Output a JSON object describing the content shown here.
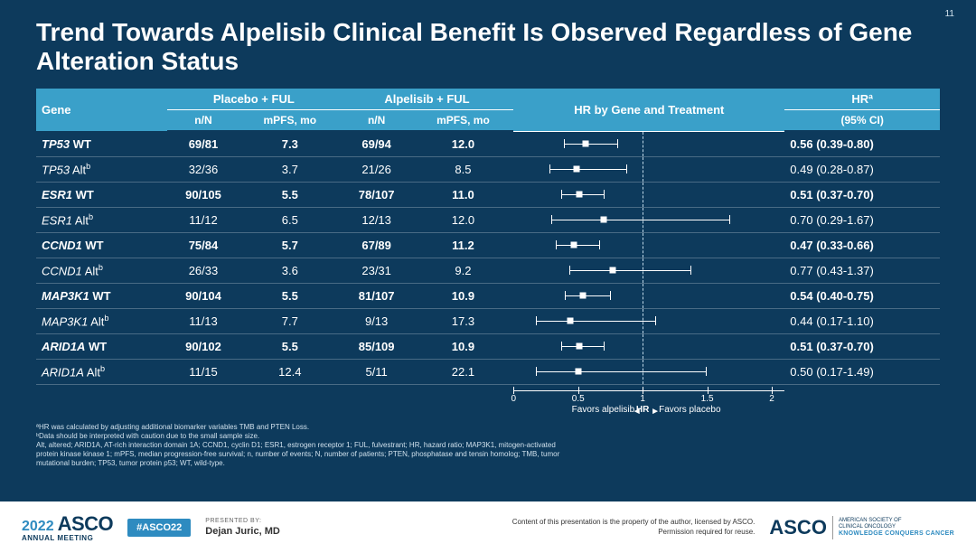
{
  "pageNumber": "11",
  "title": "Trend Towards Alpelisib Clinical Benefit Is Observed Regardless of Gene Alteration Status",
  "colors": {
    "slideBg": "#0d3a5c",
    "headerBg": "#3aa0c9",
    "text": "#ffffff",
    "footnote": "#cfe0ec",
    "accent": "#2e8bc0"
  },
  "headers": {
    "gene": "Gene",
    "placebo": "Placebo + FUL",
    "alpelisib": "Alpelisib + FUL",
    "nN": "n/N",
    "mpfs": "mPFS, mo",
    "forest": "HR by Gene and Treatment",
    "hr": "HRª",
    "ci": "(95% CI)"
  },
  "forest": {
    "xmin": 0,
    "xmax": 2.1,
    "refline": 1.0,
    "ticks": [
      0,
      0.5,
      1,
      1.5,
      2
    ],
    "leftLabel": "Favors alpelisib",
    "centerLabel": "HR",
    "rightLabel": "Favors placebo"
  },
  "rows": [
    {
      "gene": "TP53",
      "suffix": " WT",
      "sup": "",
      "bold": true,
      "p_nN": "69/81",
      "p_mpfs": "7.3",
      "a_nN": "69/94",
      "a_mpfs": "12.0",
      "hr": 0.56,
      "lo": 0.39,
      "hi": 0.8,
      "hrText": "0.56 (0.39-0.80)"
    },
    {
      "gene": "TP53",
      "suffix": " Alt",
      "sup": "b",
      "bold": false,
      "p_nN": "32/36",
      "p_mpfs": "3.7",
      "a_nN": "21/26",
      "a_mpfs": "8.5",
      "hr": 0.49,
      "lo": 0.28,
      "hi": 0.87,
      "hrText": "0.49 (0.28-0.87)"
    },
    {
      "gene": "ESR1",
      "suffix": " WT",
      "sup": "",
      "bold": true,
      "p_nN": "90/105",
      "p_mpfs": "5.5",
      "a_nN": "78/107",
      "a_mpfs": "11.0",
      "hr": 0.51,
      "lo": 0.37,
      "hi": 0.7,
      "hrText": "0.51 (0.37-0.70)"
    },
    {
      "gene": "ESR1",
      "suffix": " Alt",
      "sup": "b",
      "bold": false,
      "p_nN": "11/12",
      "p_mpfs": "6.5",
      "a_nN": "12/13",
      "a_mpfs": "12.0",
      "hr": 0.7,
      "lo": 0.29,
      "hi": 1.67,
      "hrText": "0.70 (0.29-1.67)"
    },
    {
      "gene": "CCND1",
      "suffix": " WT",
      "sup": "",
      "bold": true,
      "p_nN": "75/84",
      "p_mpfs": "5.7",
      "a_nN": "67/89",
      "a_mpfs": "11.2",
      "hr": 0.47,
      "lo": 0.33,
      "hi": 0.66,
      "hrText": "0.47 (0.33-0.66)"
    },
    {
      "gene": "CCND1",
      "suffix": " Alt",
      "sup": "b",
      "bold": false,
      "p_nN": "26/33",
      "p_mpfs": "3.6",
      "a_nN": "23/31",
      "a_mpfs": "9.2",
      "hr": 0.77,
      "lo": 0.43,
      "hi": 1.37,
      "hrText": "0.77 (0.43-1.37)"
    },
    {
      "gene": "MAP3K1",
      "suffix": " WT",
      "sup": "",
      "bold": true,
      "p_nN": "90/104",
      "p_mpfs": "5.5",
      "a_nN": "81/107",
      "a_mpfs": "10.9",
      "hr": 0.54,
      "lo": 0.4,
      "hi": 0.75,
      "hrText": "0.54 (0.40-0.75)"
    },
    {
      "gene": "MAP3K1",
      "suffix": " Alt",
      "sup": "b",
      "bold": false,
      "p_nN": "11/13",
      "p_mpfs": "7.7",
      "a_nN": "9/13",
      "a_mpfs": "17.3",
      "hr": 0.44,
      "lo": 0.17,
      "hi": 1.1,
      "hrText": "0.44 (0.17-1.10)"
    },
    {
      "gene": "ARID1A",
      "suffix": " WT",
      "sup": "",
      "bold": true,
      "p_nN": "90/102",
      "p_mpfs": "5.5",
      "a_nN": "85/109",
      "a_mpfs": "10.9",
      "hr": 0.51,
      "lo": 0.37,
      "hi": 0.7,
      "hrText": "0.51 (0.37-0.70)"
    },
    {
      "gene": "ARID1A",
      "suffix": " Alt",
      "sup": "b",
      "bold": false,
      "p_nN": "11/15",
      "p_mpfs": "12.4",
      "a_nN": "5/11",
      "a_mpfs": "22.1",
      "hr": 0.5,
      "lo": 0.17,
      "hi": 1.49,
      "hrText": "0.50 (0.17-1.49)"
    }
  ],
  "footnotes": [
    "ªHR was calculated by adjusting additional biomarker variables TMB and PTEN Loss.",
    "ᵇData should be interpreted with caution due to the small sample size.",
    "Alt, altered; ARID1A, AT-rich interaction domain 1A; CCND1, cyclin D1; ESR1, estrogen receptor 1; FUL, fulvestrant; HR, hazard ratio; MAP3K1, mitogen-activated protein kinase kinase 1; mPFS, median progression-free survival; n, number of events; N, number of patients; PTEN, phosphatase and tensin homolog; TMB, tumor mutational burden; TP53, tumor protein p53; WT, wild-type."
  ],
  "footer": {
    "year": "2022",
    "asco": "ASCO",
    "meeting": "ANNUAL MEETING",
    "hashtag": "#ASCO22",
    "presentedByLabel": "PRESENTED BY:",
    "presenter": "Dejan Juric, MD",
    "rights": "Content of this presentation is the property of the author, licensed by ASCO. Permission required for reuse.",
    "ascoOrg1": "AMERICAN SOCIETY OF",
    "ascoOrg2": "CLINICAL ONCOLOGY",
    "tagline": "KNOWLEDGE CONQUERS CANCER"
  }
}
